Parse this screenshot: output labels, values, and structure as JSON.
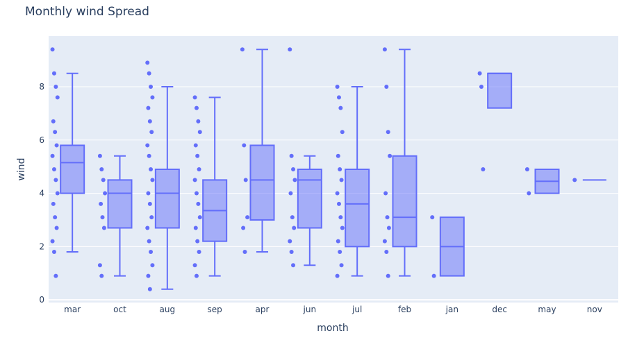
{
  "chart_data": {
    "type": "box",
    "title": "Monthly wind Spread",
    "xlabel": "month",
    "ylabel": "wind",
    "ylim": [
      -0.1,
      9.9
    ],
    "yticks": [
      0,
      2,
      4,
      6,
      8
    ],
    "grid": true,
    "points": "all",
    "color": "#636efa",
    "fill": "rgba(99,110,250,0.5)",
    "background": "#e5ecf6",
    "categories": [
      "mar",
      "oct",
      "aug",
      "sep",
      "apr",
      "jun",
      "jul",
      "feb",
      "jan",
      "dec",
      "may",
      "nov"
    ],
    "boxes": [
      {
        "q1": 4.0,
        "median": 5.15,
        "q3": 5.8,
        "lower": 1.8,
        "upper": 8.5,
        "points": [
          9.4,
          8.5,
          8.0,
          7.6,
          6.7,
          6.3,
          5.8,
          5.4,
          4.9,
          4.5,
          4.0,
          3.6,
          3.1,
          2.7,
          2.2,
          1.8,
          0.9
        ]
      },
      {
        "q1": 2.7,
        "median": 4.0,
        "q3": 4.5,
        "lower": 0.9,
        "upper": 5.4,
        "points": [
          5.4,
          4.9,
          4.5,
          4.0,
          3.6,
          3.1,
          2.7,
          1.3,
          0.9
        ]
      },
      {
        "q1": 2.7,
        "median": 4.0,
        "q3": 4.9,
        "lower": 0.4,
        "upper": 8.0,
        "points": [
          8.9,
          8.5,
          8.0,
          7.6,
          7.2,
          6.7,
          6.3,
          5.8,
          5.4,
          4.9,
          4.5,
          4.0,
          3.6,
          3.1,
          2.7,
          2.2,
          1.8,
          1.3,
          0.9,
          0.4
        ]
      },
      {
        "q1": 2.2,
        "median": 3.35,
        "q3": 4.5,
        "lower": 0.9,
        "upper": 7.6,
        "points": [
          7.6,
          7.2,
          6.7,
          6.3,
          5.8,
          5.4,
          4.9,
          4.5,
          4.0,
          3.6,
          3.1,
          2.7,
          2.2,
          1.8,
          1.3,
          0.9
        ]
      },
      {
        "q1": 3.0,
        "median": 4.5,
        "q3": 5.8,
        "lower": 1.8,
        "upper": 9.4,
        "points": [
          9.4,
          5.8,
          4.5,
          3.1,
          2.7,
          1.8
        ]
      },
      {
        "q1": 2.7,
        "median": 4.5,
        "q3": 4.9,
        "lower": 1.3,
        "upper": 5.4,
        "points": [
          9.4,
          5.4,
          4.9,
          4.5,
          4.0,
          3.1,
          2.7,
          2.2,
          1.8,
          1.3
        ]
      },
      {
        "q1": 2.0,
        "median": 3.6,
        "q3": 4.9,
        "lower": 0.9,
        "upper": 8.0,
        "points": [
          8.0,
          7.6,
          7.2,
          6.3,
          5.4,
          4.9,
          4.5,
          4.0,
          3.6,
          3.1,
          2.7,
          2.2,
          1.8,
          1.3,
          0.9
        ]
      },
      {
        "q1": 2.0,
        "median": 3.1,
        "q3": 5.4,
        "lower": 0.9,
        "upper": 9.4,
        "points": [
          9.4,
          8.0,
          6.3,
          5.4,
          4.0,
          3.1,
          2.7,
          2.2,
          1.8,
          0.9
        ]
      },
      {
        "q1": 0.9,
        "median": 2.0,
        "q3": 3.1,
        "lower": 0.9,
        "upper": 3.1,
        "points": [
          3.1,
          0.9
        ]
      },
      {
        "q1": 7.2,
        "median": 8.5,
        "q3": 8.5,
        "lower": 7.2,
        "upper": 8.5,
        "points": [
          8.5,
          8.0,
          4.9
        ]
      },
      {
        "q1": 4.0,
        "median": 4.45,
        "q3": 4.9,
        "lower": 4.0,
        "upper": 4.9,
        "points": [
          4.9,
          4.0
        ]
      },
      {
        "q1": 4.5,
        "median": 4.5,
        "q3": 4.5,
        "lower": 4.5,
        "upper": 4.5,
        "points": [
          4.5
        ]
      }
    ]
  }
}
